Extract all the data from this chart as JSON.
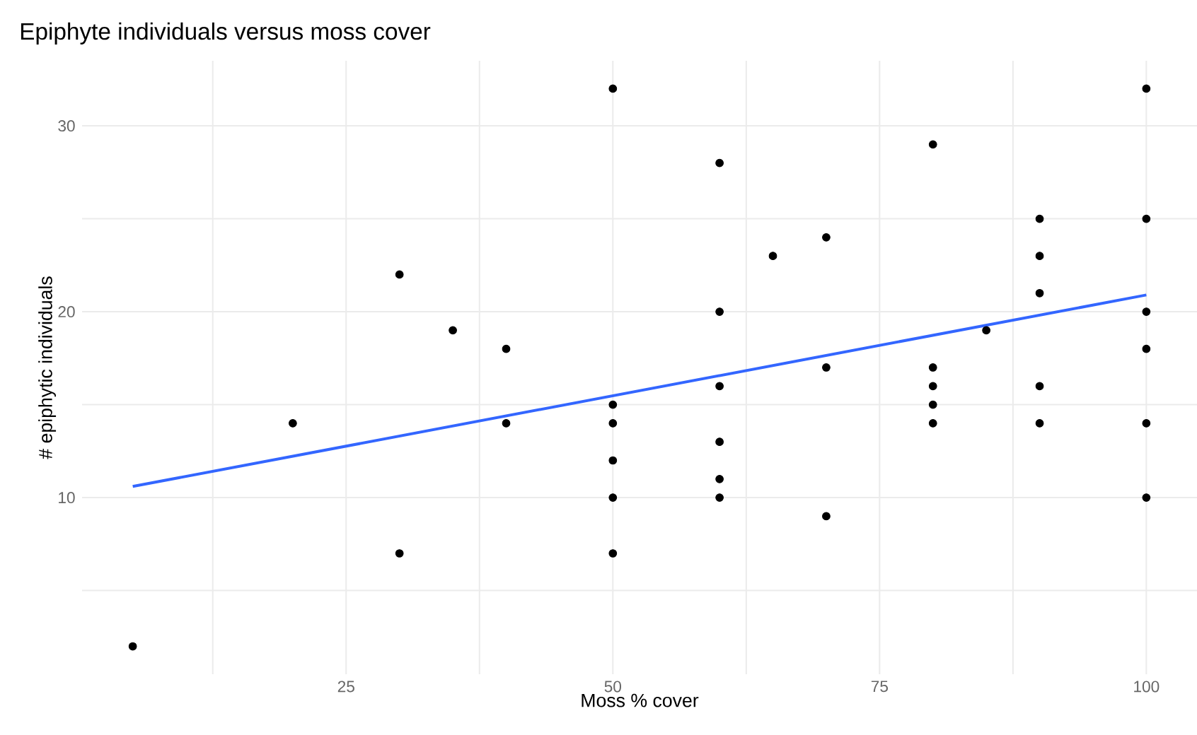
{
  "chart_data": {
    "type": "scatter",
    "title": "Epiphyte individuals versus moss cover",
    "xlabel": "Moss % cover",
    "ylabel": "# epiphytic individuals",
    "xlim": [
      0.25,
      104.75
    ],
    "ylim": [
      0.5,
      33.5
    ],
    "xticks": [
      {
        "value": 12.5,
        "label": null
      },
      25,
      {
        "value": 37.5,
        "label": null
      },
      50,
      {
        "value": 62.5,
        "label": null
      },
      75,
      {
        "value": 87.5,
        "label": null
      },
      100
    ],
    "yticks": [
      {
        "value": 5,
        "label": null
      },
      10,
      {
        "value": 15,
        "label": null
      },
      20,
      {
        "value": 25,
        "label": null
      },
      30
    ],
    "grid": true,
    "series": [
      {
        "type": "scatter",
        "marker": "circle",
        "color": "#000000",
        "x": [
          5,
          20,
          30,
          30,
          35,
          40,
          40,
          50,
          50,
          50,
          50,
          50,
          50,
          60,
          60,
          60,
          60,
          60,
          60,
          65,
          70,
          70,
          70,
          80,
          80,
          80,
          80,
          80,
          85,
          90,
          90,
          90,
          90,
          90,
          100,
          100,
          100,
          100,
          100,
          100
        ],
        "values": [
          2,
          14,
          22,
          7,
          19,
          18,
          14,
          32,
          15,
          14,
          12,
          10,
          7,
          28,
          20,
          16,
          13,
          11,
          10,
          23,
          24,
          17,
          9,
          29,
          17,
          16,
          15,
          14,
          19,
          25,
          23,
          21,
          16,
          14,
          32,
          25,
          20,
          18,
          14,
          10
        ]
      },
      {
        "type": "line",
        "color": "#3366ff",
        "marker": "none",
        "x": [
          5,
          100
        ],
        "values": [
          10.6,
          20.9
        ]
      }
    ]
  }
}
